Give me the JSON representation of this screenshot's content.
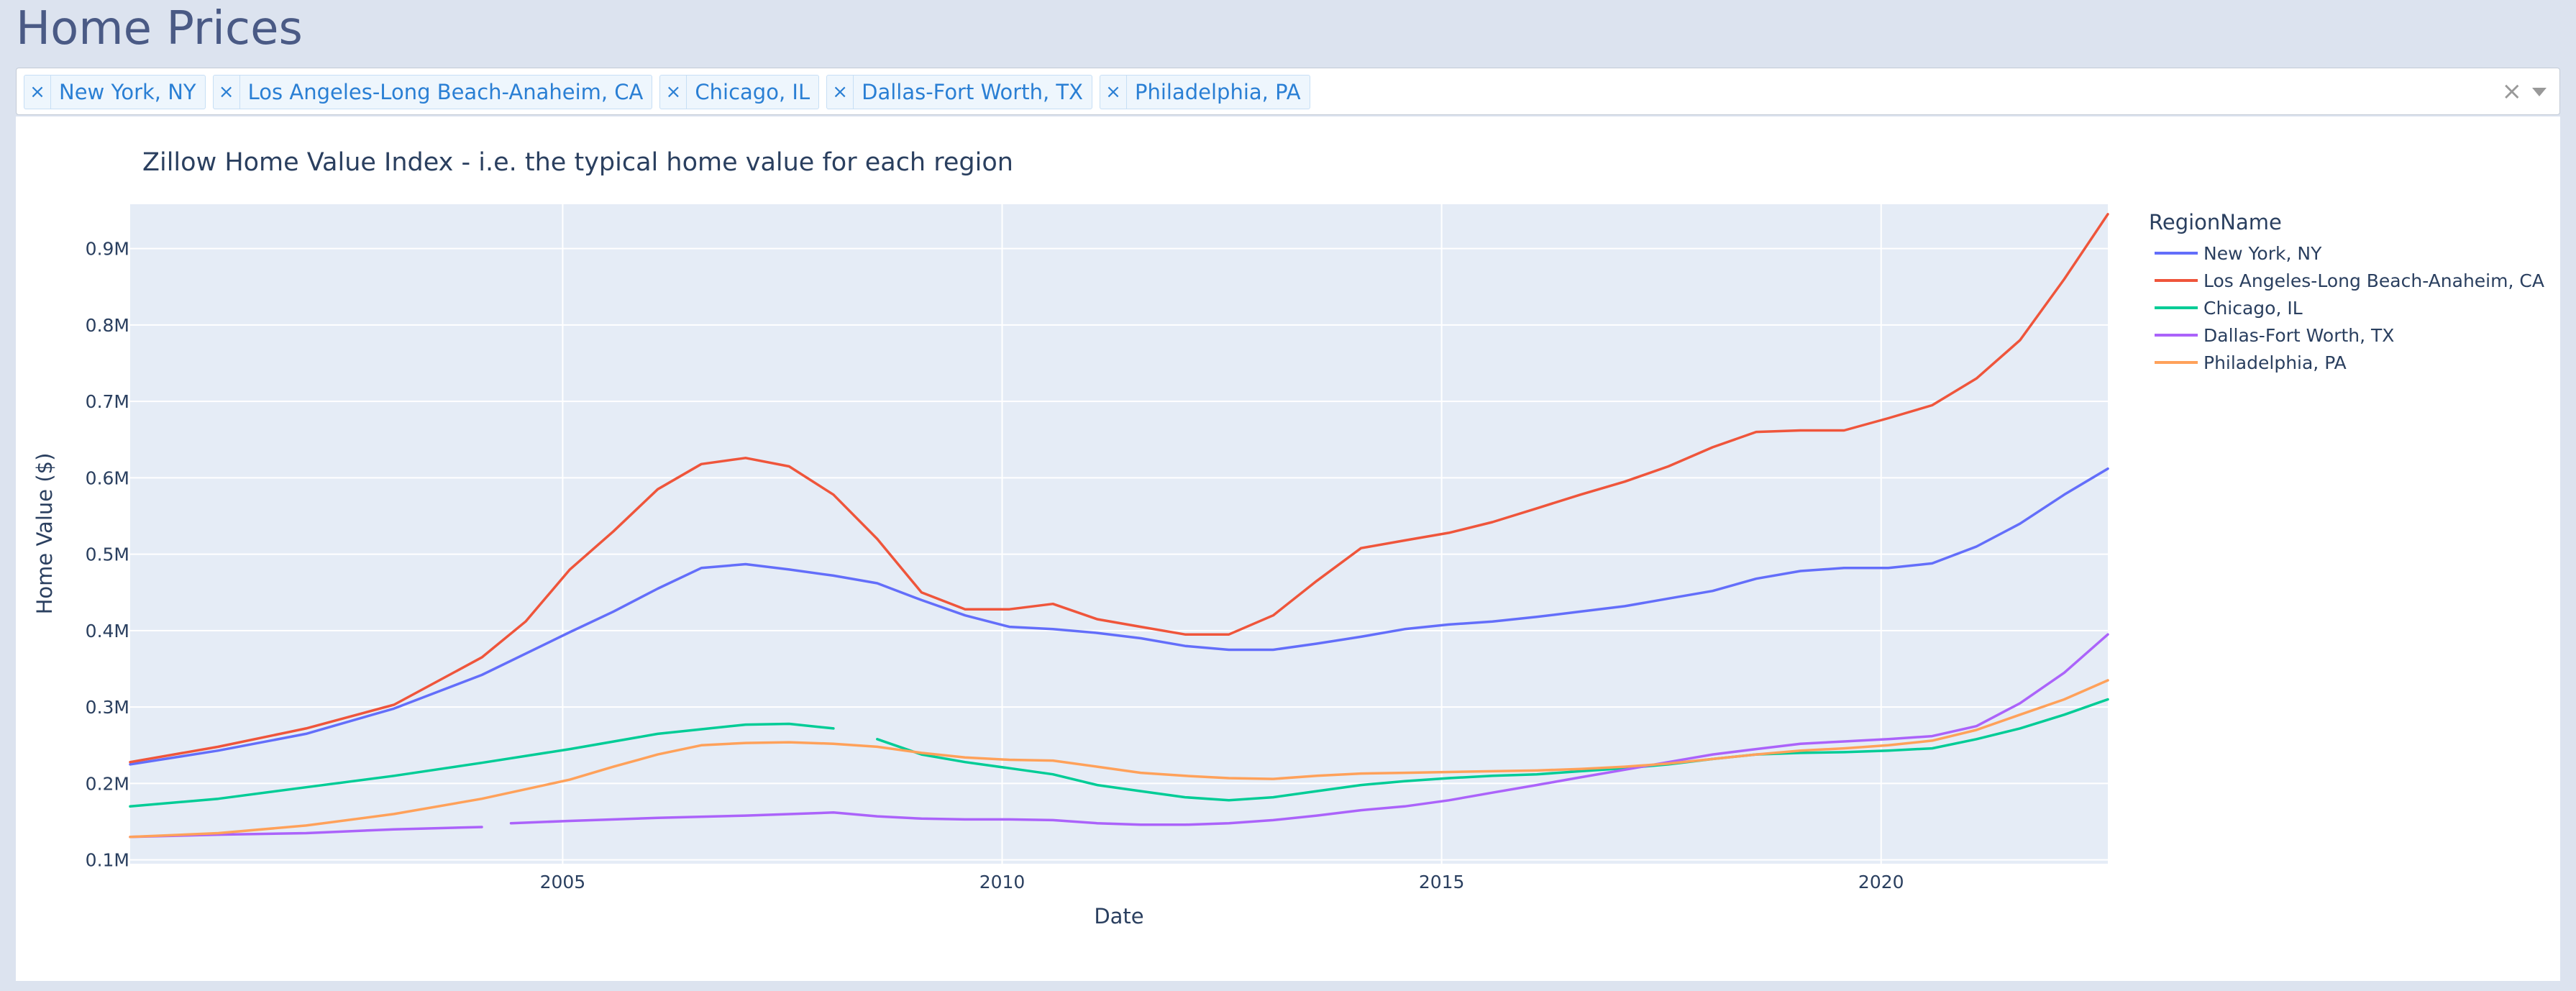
{
  "page": {
    "title": "Home Prices"
  },
  "filter": {
    "selected": [
      "New York, NY",
      "Los Angeles-Long Beach-Anaheim, CA",
      "Chicago, IL",
      "Dallas-Fort Worth, TX",
      "Philadelphia, PA"
    ],
    "remove_glyph": "×",
    "clear_glyph": "×"
  },
  "colors": {
    "plot_bg": "#e5ecf6",
    "grid": "#ffffff",
    "text": "#2a3f5f"
  },
  "chart_data": {
    "type": "line",
    "title": "Zillow Home Value Index - i.e. the typical home value for each region",
    "xlabel": "Date",
    "ylabel": "Home Value ($)",
    "legend_title": "RegionName",
    "legend_position": "right",
    "grid": true,
    "xlim": [
      "2000-01-31",
      "2022-07-31"
    ],
    "ylim": [
      95000,
      958000
    ],
    "x_ticks": [
      {
        "value": "2005-01-01",
        "label": "2005"
      },
      {
        "value": "2010-01-01",
        "label": "2010"
      },
      {
        "value": "2015-01-01",
        "label": "2015"
      },
      {
        "value": "2020-01-01",
        "label": "2020"
      }
    ],
    "y_ticks": [
      {
        "value": 100000,
        "label": "0.1M"
      },
      {
        "value": 200000,
        "label": "0.2M"
      },
      {
        "value": 300000,
        "label": "0.3M"
      },
      {
        "value": 400000,
        "label": "0.4M"
      },
      {
        "value": 500000,
        "label": "0.5M"
      },
      {
        "value": 600000,
        "label": "0.6M"
      },
      {
        "value": 700000,
        "label": "0.7M"
      },
      {
        "value": 800000,
        "label": "0.8M"
      },
      {
        "value": 900000,
        "label": "0.9M"
      }
    ],
    "series": [
      {
        "name": "New York, NY",
        "color": "#636efa",
        "points": [
          [
            "2000-01-31",
            225000
          ],
          [
            "2001-01-31",
            243000
          ],
          [
            "2002-01-31",
            265000
          ],
          [
            "2003-01-31",
            298000
          ],
          [
            "2004-01-31",
            342000
          ],
          [
            "2005-01-31",
            398000
          ],
          [
            "2005-07-31",
            425000
          ],
          [
            "2006-01-31",
            455000
          ],
          [
            "2006-07-31",
            482000
          ],
          [
            "2007-01-31",
            487000
          ],
          [
            "2007-07-31",
            480000
          ],
          [
            "2008-01-31",
            472000
          ],
          [
            "2008-07-31",
            462000
          ],
          [
            "2009-01-31",
            440000
          ],
          [
            "2009-07-31",
            420000
          ],
          [
            "2010-01-31",
            405000
          ],
          [
            "2010-07-31",
            402000
          ],
          [
            "2011-01-31",
            397000
          ],
          [
            "2011-07-31",
            390000
          ],
          [
            "2012-01-31",
            380000
          ],
          [
            "2012-07-31",
            375000
          ],
          [
            "2013-01-31",
            375000
          ],
          [
            "2013-07-31",
            383000
          ],
          [
            "2014-01-31",
            392000
          ],
          [
            "2014-07-31",
            402000
          ],
          [
            "2015-01-31",
            408000
          ],
          [
            "2015-07-31",
            412000
          ],
          [
            "2016-01-31",
            418000
          ],
          [
            "2016-07-31",
            425000
          ],
          [
            "2017-01-31",
            432000
          ],
          [
            "2017-07-31",
            442000
          ],
          [
            "2018-01-31",
            452000
          ],
          [
            "2018-07-31",
            468000
          ],
          [
            "2019-01-31",
            478000
          ],
          [
            "2019-07-31",
            482000
          ],
          [
            "2020-01-31",
            482000
          ],
          [
            "2020-07-31",
            488000
          ],
          [
            "2021-01-31",
            510000
          ],
          [
            "2021-07-31",
            540000
          ],
          [
            "2022-01-31",
            578000
          ],
          [
            "2022-07-31",
            612000
          ]
        ]
      },
      {
        "name": "Los Angeles-Long Beach-Anaheim, CA",
        "color": "#ef553b",
        "points": [
          [
            "2000-01-31",
            228000
          ],
          [
            "2001-01-31",
            248000
          ],
          [
            "2002-01-31",
            272000
          ],
          [
            "2003-01-31",
            303000
          ],
          [
            "2004-01-31",
            365000
          ],
          [
            "2004-07-31",
            412000
          ],
          [
            "2005-01-31",
            480000
          ],
          [
            "2005-07-31",
            530000
          ],
          [
            "2006-01-31",
            585000
          ],
          [
            "2006-07-31",
            618000
          ],
          [
            "2007-01-31",
            626000
          ],
          [
            "2007-07-31",
            615000
          ],
          [
            "2008-01-31",
            578000
          ],
          [
            "2008-07-31",
            520000
          ],
          [
            "2009-01-31",
            450000
          ],
          [
            "2009-07-31",
            428000
          ],
          [
            "2010-01-31",
            428000
          ],
          [
            "2010-07-31",
            435000
          ],
          [
            "2011-01-31",
            415000
          ],
          [
            "2011-07-31",
            405000
          ],
          [
            "2012-01-31",
            395000
          ],
          [
            "2012-07-31",
            395000
          ],
          [
            "2013-01-31",
            420000
          ],
          [
            "2013-07-31",
            465000
          ],
          [
            "2014-01-31",
            508000
          ],
          [
            "2014-07-31",
            518000
          ],
          [
            "2015-01-31",
            528000
          ],
          [
            "2015-07-31",
            542000
          ],
          [
            "2016-01-31",
            560000
          ],
          [
            "2016-07-31",
            578000
          ],
          [
            "2017-01-31",
            595000
          ],
          [
            "2017-07-31",
            615000
          ],
          [
            "2018-01-31",
            640000
          ],
          [
            "2018-07-31",
            660000
          ],
          [
            "2019-01-31",
            662000
          ],
          [
            "2019-07-31",
            662000
          ],
          [
            "2020-01-31",
            678000
          ],
          [
            "2020-07-31",
            695000
          ],
          [
            "2021-01-31",
            730000
          ],
          [
            "2021-07-31",
            780000
          ],
          [
            "2022-01-31",
            860000
          ],
          [
            "2022-07-31",
            945000
          ]
        ]
      },
      {
        "name": "Chicago, IL",
        "color": "#00cc96",
        "points": [
          [
            "2000-01-31",
            170000
          ],
          [
            "2001-01-31",
            180000
          ],
          [
            "2002-01-31",
            195000
          ],
          [
            "2003-01-31",
            210000
          ],
          [
            "2004-01-31",
            227000
          ],
          [
            "2005-01-31",
            245000
          ],
          [
            "2006-01-31",
            265000
          ],
          [
            "2007-01-31",
            277000
          ],
          [
            "2007-07-31",
            278000
          ],
          [
            "2008-01-31",
            272000
          ],
          null,
          [
            "2008-07-31",
            258000
          ],
          [
            "2009-01-31",
            238000
          ],
          [
            "2009-07-31",
            228000
          ],
          [
            "2010-01-31",
            220000
          ],
          [
            "2010-07-31",
            212000
          ],
          [
            "2011-01-31",
            198000
          ],
          [
            "2011-07-31",
            190000
          ],
          [
            "2012-01-31",
            182000
          ],
          [
            "2012-07-31",
            178000
          ],
          [
            "2013-01-31",
            182000
          ],
          [
            "2013-07-31",
            190000
          ],
          [
            "2014-01-31",
            198000
          ],
          [
            "2014-07-31",
            203000
          ],
          [
            "2015-01-31",
            207000
          ],
          [
            "2015-07-31",
            210000
          ],
          [
            "2016-01-31",
            212000
          ],
          [
            "2016-07-31",
            216000
          ],
          [
            "2017-01-31",
            220000
          ],
          [
            "2017-07-31",
            225000
          ],
          [
            "2018-01-31",
            232000
          ],
          [
            "2018-07-31",
            238000
          ],
          [
            "2019-01-31",
            240000
          ],
          [
            "2019-07-31",
            241000
          ],
          [
            "2020-01-31",
            243000
          ],
          [
            "2020-07-31",
            246000
          ],
          [
            "2021-01-31",
            258000
          ],
          [
            "2021-07-31",
            272000
          ],
          [
            "2022-01-31",
            290000
          ],
          [
            "2022-07-31",
            310000
          ]
        ]
      },
      {
        "name": "Dallas-Fort Worth, TX",
        "color": "#ab63fa",
        "points": [
          [
            "2000-01-31",
            130000
          ],
          [
            "2001-01-31",
            133000
          ],
          [
            "2002-01-31",
            135000
          ],
          [
            "2003-01-31",
            140000
          ],
          [
            "2004-01-31",
            143000
          ],
          null,
          [
            "2004-05-31",
            148000
          ],
          [
            "2005-01-31",
            151000
          ],
          [
            "2006-01-31",
            155000
          ],
          [
            "2007-01-31",
            158000
          ],
          [
            "2008-01-31",
            162000
          ],
          [
            "2008-07-31",
            157000
          ],
          [
            "2009-01-31",
            154000
          ],
          [
            "2009-07-31",
            153000
          ],
          [
            "2010-01-31",
            153000
          ],
          [
            "2010-07-31",
            152000
          ],
          [
            "2011-01-31",
            148000
          ],
          [
            "2011-07-31",
            146000
          ],
          [
            "2012-01-31",
            146000
          ],
          [
            "2012-07-31",
            148000
          ],
          [
            "2013-01-31",
            152000
          ],
          [
            "2013-07-31",
            158000
          ],
          [
            "2014-01-31",
            165000
          ],
          [
            "2014-07-31",
            170000
          ],
          [
            "2015-01-31",
            178000
          ],
          [
            "2015-07-31",
            188000
          ],
          [
            "2016-01-31",
            198000
          ],
          [
            "2016-07-31",
            208000
          ],
          [
            "2017-01-31",
            218000
          ],
          [
            "2017-07-31",
            228000
          ],
          [
            "2018-01-31",
            238000
          ],
          [
            "2018-07-31",
            245000
          ],
          [
            "2019-01-31",
            252000
          ],
          [
            "2019-07-31",
            255000
          ],
          [
            "2020-01-31",
            258000
          ],
          [
            "2020-07-31",
            262000
          ],
          [
            "2021-01-31",
            275000
          ],
          [
            "2021-07-31",
            305000
          ],
          [
            "2022-01-31",
            345000
          ],
          [
            "2022-07-31",
            395000
          ]
        ]
      },
      {
        "name": "Philadelphia, PA",
        "color": "#ffa15a",
        "points": [
          [
            "2000-01-31",
            130000
          ],
          [
            "2001-01-31",
            135000
          ],
          [
            "2002-01-31",
            145000
          ],
          [
            "2003-01-31",
            160000
          ],
          [
            "2004-01-31",
            180000
          ],
          [
            "2005-01-31",
            205000
          ],
          [
            "2005-07-31",
            222000
          ],
          [
            "2006-01-31",
            238000
          ],
          [
            "2006-07-31",
            250000
          ],
          [
            "2007-01-31",
            253000
          ],
          [
            "2007-07-31",
            254000
          ],
          [
            "2008-01-31",
            252000
          ],
          [
            "2008-07-31",
            248000
          ],
          [
            "2009-01-31",
            240000
          ],
          [
            "2009-07-31",
            234000
          ],
          [
            "2010-01-31",
            231000
          ],
          [
            "2010-07-31",
            230000
          ],
          [
            "2011-01-31",
            222000
          ],
          [
            "2011-07-31",
            214000
          ],
          [
            "2012-01-31",
            210000
          ],
          [
            "2012-07-31",
            207000
          ],
          [
            "2013-01-31",
            206000
          ],
          [
            "2013-07-31",
            210000
          ],
          [
            "2014-01-31",
            213000
          ],
          [
            "2014-07-31",
            214000
          ],
          [
            "2015-01-31",
            215000
          ],
          [
            "2015-07-31",
            216000
          ],
          [
            "2016-01-31",
            217000
          ],
          [
            "2016-07-31",
            219000
          ],
          [
            "2017-01-31",
            222000
          ],
          [
            "2017-07-31",
            226000
          ],
          [
            "2018-01-31",
            232000
          ],
          [
            "2018-07-31",
            238000
          ],
          [
            "2019-01-31",
            243000
          ],
          [
            "2019-07-31",
            246000
          ],
          [
            "2020-01-31",
            250000
          ],
          [
            "2020-07-31",
            256000
          ],
          [
            "2021-01-31",
            270000
          ],
          [
            "2021-07-31",
            290000
          ],
          [
            "2022-01-31",
            310000
          ],
          [
            "2022-07-31",
            335000
          ]
        ]
      }
    ]
  }
}
